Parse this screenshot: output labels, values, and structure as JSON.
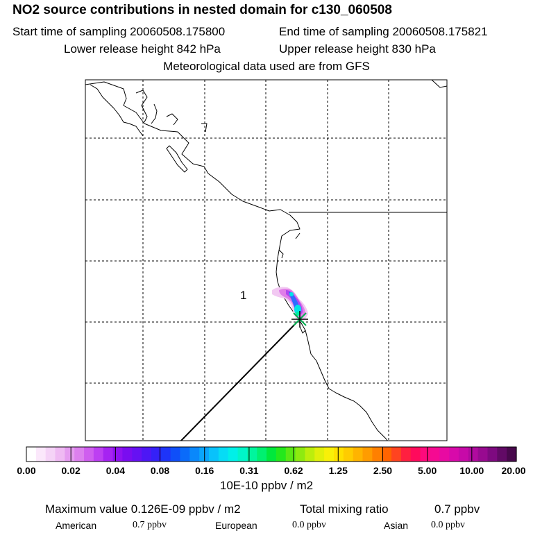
{
  "title": "NO2 source contributions in nested domain for c130_060508",
  "sampling": {
    "start": "Start time of sampling 20060508.175800",
    "end": "End time of sampling 20060508.175821"
  },
  "release": {
    "lower": "Lower release height  842 hPa",
    "upper": "Upper release height  830 hPa"
  },
  "met_note": "Meteorological data used are from GFS",
  "map": {
    "region_label": "1",
    "plume_colors": [
      "#f2c8f2",
      "#e07ee8",
      "#b248f0",
      "#2f6cff",
      "#00e5e5",
      "#00f0a0"
    ],
    "marker_colors": [
      "#000000",
      "#00b050"
    ]
  },
  "colorbar": {
    "ticks": [
      "0.00",
      "0.02",
      "0.04",
      "0.08",
      "0.16",
      "0.31",
      "0.62",
      "1.25",
      "2.50",
      "5.00",
      "10.00",
      "20.00"
    ],
    "colors": [
      "#ffffff",
      "#fbe8fb",
      "#f5d3f7",
      "#efbaf3",
      "#e59cf0",
      "#dc80ee",
      "#cf5eef",
      "#bd3ff2",
      "#a623f2",
      "#8f12f0",
      "#7a0df0",
      "#6611f3",
      "#4d17f5",
      "#3521f7",
      "#1e34f9",
      "#0f4ff9",
      "#0a6bfa",
      "#0a88fb",
      "#0aa5fc",
      "#09c2fb",
      "#06dcf5",
      "#00f0e8",
      "#00f5c8",
      "#00f59e",
      "#00f070",
      "#00e83c",
      "#24e81c",
      "#5ae814",
      "#8eea10",
      "#bcee0c",
      "#e0f00a",
      "#f8f008",
      "#ffe000",
      "#ffcc00",
      "#ffb400",
      "#ff9c00",
      "#ff8000",
      "#ff6400",
      "#ff4420",
      "#ff2040",
      "#ff0a5c",
      "#ff0a7c",
      "#f50a92",
      "#e80aa2",
      "#d80aaa",
      "#c70aa8",
      "#b00a9e",
      "#980a90",
      "#7e0a80",
      "#620a66",
      "#48084c"
    ],
    "units": "10E-10 ppbv / m2"
  },
  "footer": {
    "max_value": "Maximum value  0.126E-09 ppbv / m2",
    "total_label": "Total mixing ratio",
    "total_value": "0.7 ppbv",
    "sources": [
      {
        "name": "American",
        "value": "0.7 ppbv"
      },
      {
        "name": "European",
        "value": "0.0 ppbv"
      },
      {
        "name": "Asian",
        "value": "0.0 ppbv"
      }
    ]
  }
}
